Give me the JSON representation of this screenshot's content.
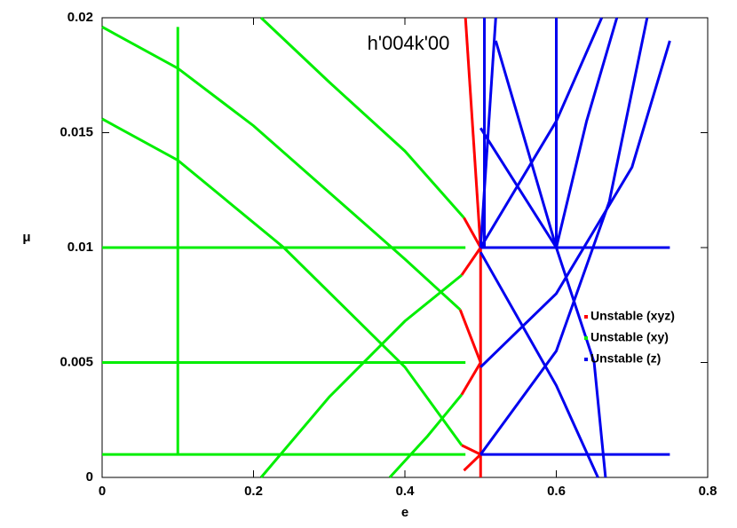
{
  "chart_data": {
    "type": "line",
    "title": "h'004k'00",
    "x_label": "e",
    "y_label": "μ",
    "xlim": [
      0,
      0.8
    ],
    "ylim": [
      0,
      0.02
    ],
    "xticks": [
      0,
      0.2,
      0.4,
      0.6,
      0.8
    ],
    "yticks": [
      0,
      0.005,
      0.01,
      0.015,
      0.02
    ],
    "legend": "right",
    "series": [
      {
        "name": "Unstable (xyz)",
        "color": "#ff0000",
        "x": [
          0.5,
          0.5,
          null,
          0.478,
          0.5,
          null,
          0.475,
          0.5,
          null,
          0.473,
          0.5,
          null,
          0.475,
          0.5,
          null,
          0.475,
          0.5,
          null,
          0.478,
          0.5,
          null,
          0.48,
          0.5
        ],
        "values": [
          0,
          0.01,
          null,
          0.0113,
          0.01,
          null,
          0.0088,
          0.01,
          null,
          0.0073,
          0.005,
          null,
          0.0036,
          0.005,
          null,
          0.0014,
          0.001,
          null,
          0.0003,
          0.001,
          null,
          0.02,
          0.01
        ]
      },
      {
        "name": "Unstable (xy)",
        "color": "#00ee00",
        "x": [
          0,
          0.48,
          null,
          0,
          0.48,
          null,
          0,
          0.48,
          null,
          0,
          0.1,
          0.2,
          0.3,
          0.4,
          0.473,
          null,
          0,
          0.1,
          0.24,
          0.4,
          0.475,
          null,
          0.21,
          0.3,
          0.4,
          0.478,
          null,
          0.21,
          0.3,
          0.4,
          0.475,
          null,
          0.38,
          0.43,
          0.475,
          null,
          0.1,
          0.1
        ],
        "values": [
          0.01,
          0.01,
          null,
          0.005,
          0.005,
          null,
          0.001,
          0.001,
          null,
          0.0196,
          0.0178,
          0.0153,
          0.0124,
          0.0095,
          0.0073,
          null,
          0.0156,
          0.0138,
          0.01,
          0.0048,
          0.0014,
          null,
          0.02,
          0.0172,
          0.0142,
          0.0113,
          null,
          0,
          0.0035,
          0.0068,
          0.0088,
          null,
          0,
          0.0018,
          0.0036,
          null,
          0.001,
          0.0196
        ]
      },
      {
        "name": "Unstable (z)",
        "color": "#0000ee",
        "x": [
          0.5,
          0.75,
          null,
          0.5,
          0.75,
          null,
          0.6,
          0.6,
          null,
          0.505,
          0.505,
          null,
          0.5,
          0.6,
          0.7,
          0.75,
          null,
          0.5,
          0.6,
          0.67,
          0.72,
          null,
          0.5,
          0.6,
          0.66,
          null,
          0.6,
          0.64,
          0.68,
          null,
          0.5,
          0.6,
          0.65,
          0.665,
          null,
          0.52,
          0.6,
          null,
          0.5,
          0.6,
          0.655,
          null,
          0.52,
          0.5
        ],
        "values": [
          0.01,
          0.01,
          null,
          0.001,
          0.001,
          null,
          0.01,
          0.02,
          null,
          0.01,
          0.02,
          null,
          0.0048,
          0.008,
          0.0135,
          0.019,
          null,
          0.001,
          0.0055,
          0.012,
          0.02,
          null,
          0.01,
          0.0155,
          0.02,
          null,
          0.01,
          0.0155,
          0.02,
          null,
          0.0152,
          0.01,
          0.005,
          0,
          null,
          0.019,
          0.01,
          null,
          0.0098,
          0.004,
          0,
          null,
          0.02,
          0.01
        ]
      }
    ]
  }
}
